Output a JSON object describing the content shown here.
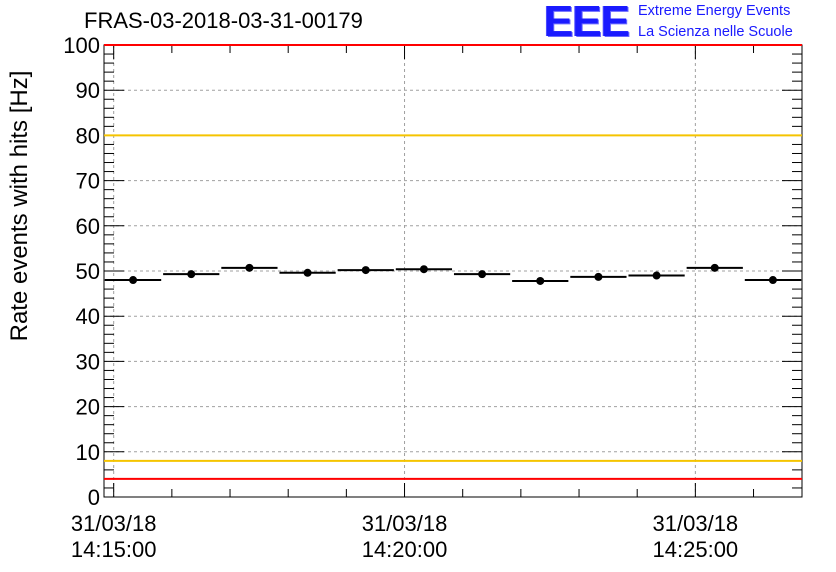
{
  "header": {
    "title": "FRAS-03-2018-03-31-00179",
    "logo_mark": "EEE",
    "logo_line1": "Extreme Energy Events",
    "logo_line2": "La Scienza nelle Scuole"
  },
  "colors": {
    "axis": "#000000",
    "grid": "#a0a0a0",
    "red_limit": "#ff0000",
    "yellow_limit": "#f5c400",
    "marker": "#000000",
    "logo": "#1a1aff"
  },
  "chart_data": {
    "type": "scatter",
    "title": "FRAS-03-2018-03-31-00179",
    "ylabel": "Rate events with hits [Hz]",
    "xlabel": "",
    "ylim": [
      0,
      100
    ],
    "yticks": [
      0,
      10,
      20,
      30,
      40,
      50,
      60,
      70,
      80,
      90,
      100
    ],
    "x_axis": "time",
    "xlim": [
      "2018-03-31 14:14:50",
      "2018-03-31 14:26:50"
    ],
    "xticks": [
      {
        "time": "2018-03-31 14:15:00",
        "line1": "31/03/18",
        "line2": "14:15:00"
      },
      {
        "time": "2018-03-31 14:20:00",
        "line1": "31/03/18",
        "line2": "14:20:00"
      },
      {
        "time": "2018-03-31 14:25:00",
        "line1": "31/03/18",
        "line2": "14:25:00"
      }
    ],
    "grid": true,
    "bin_width_seconds": 60,
    "points": [
      {
        "t": "2018-03-31 14:15:20",
        "y": 48.0
      },
      {
        "t": "2018-03-31 14:16:20",
        "y": 49.3
      },
      {
        "t": "2018-03-31 14:17:20",
        "y": 50.7
      },
      {
        "t": "2018-03-31 14:18:20",
        "y": 49.6
      },
      {
        "t": "2018-03-31 14:19:20",
        "y": 50.2
      },
      {
        "t": "2018-03-31 14:20:20",
        "y": 50.4
      },
      {
        "t": "2018-03-31 14:21:20",
        "y": 49.3
      },
      {
        "t": "2018-03-31 14:22:20",
        "y": 47.8
      },
      {
        "t": "2018-03-31 14:23:20",
        "y": 48.7
      },
      {
        "t": "2018-03-31 14:24:20",
        "y": 49.0
      },
      {
        "t": "2018-03-31 14:25:20",
        "y": 50.7
      },
      {
        "t": "2018-03-31 14:26:20",
        "y": 48.0
      }
    ],
    "reference_lines": [
      {
        "y": 100,
        "color": "red"
      },
      {
        "y": 4,
        "color": "red"
      },
      {
        "y": 80,
        "color": "yellow"
      },
      {
        "y": 8,
        "color": "yellow"
      }
    ]
  }
}
